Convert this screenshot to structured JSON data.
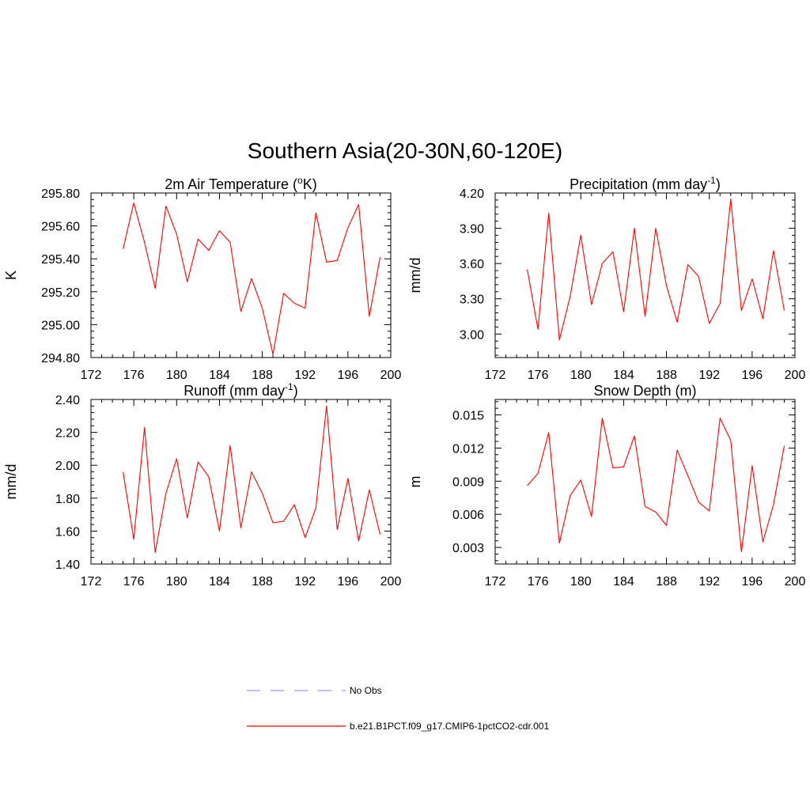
{
  "figure_title": "Southern Asia(20-30N,60-120E)",
  "legend": [
    {
      "label": "No Obs",
      "color": "#9999ee",
      "style": "dashed"
    },
    {
      "label": "b.e21.B1PCT.f09_g17.CMIP6-1pctCO2-cdr.001",
      "color": "#ff0000",
      "style": "solid"
    }
  ],
  "chart_data": [
    {
      "type": "line",
      "title_main": "2m Air Temperature (",
      "title_sup": "o",
      "title_after": "K)",
      "ylabel": "K",
      "xlim": [
        172,
        200
      ],
      "xticks": [
        "172",
        "176",
        "180",
        "184",
        "188",
        "192",
        "196",
        "200"
      ],
      "ylim": [
        294.8,
        295.8
      ],
      "yticks": [
        "294.80",
        "295.00",
        "295.20",
        "295.40",
        "295.60",
        "295.80"
      ],
      "series": [
        {
          "color": "#ff0000",
          "x": [
            175,
            176,
            177,
            178,
            179,
            180,
            181,
            182,
            183,
            184,
            185,
            186,
            187,
            188,
            189,
            190,
            191,
            192,
            193,
            194,
            195,
            196,
            197,
            198,
            199
          ],
          "y": [
            295.46,
            295.74,
            295.5,
            295.22,
            295.72,
            295.55,
            295.26,
            295.52,
            295.45,
            295.57,
            295.5,
            295.08,
            295.28,
            295.1,
            294.82,
            295.19,
            295.13,
            295.1,
            295.68,
            295.38,
            295.39,
            295.59,
            295.73,
            295.05,
            295.41
          ]
        }
      ]
    },
    {
      "type": "line",
      "title_main": "Precipitation (mm day",
      "title_sup": "-1",
      "title_after": ")",
      "ylabel": "mm/d",
      "xlim": [
        172,
        200
      ],
      "xticks": [
        "172",
        "176",
        "180",
        "184",
        "188",
        "192",
        "196",
        "200"
      ],
      "ylim": [
        2.8,
        4.2
      ],
      "yticks": [
        "3.00",
        "3.30",
        "3.60",
        "3.90",
        "4.20"
      ],
      "series": [
        {
          "color": "#ff0000",
          "x": [
            175,
            176,
            177,
            178,
            179,
            180,
            181,
            182,
            183,
            184,
            185,
            186,
            187,
            188,
            189,
            190,
            191,
            192,
            193,
            194,
            195,
            196,
            197,
            198,
            199
          ],
          "y": [
            3.55,
            3.04,
            4.03,
            2.95,
            3.32,
            3.84,
            3.25,
            3.6,
            3.7,
            3.19,
            3.9,
            3.15,
            3.9,
            3.41,
            3.1,
            3.59,
            3.49,
            3.09,
            3.26,
            4.15,
            3.2,
            3.47,
            3.13,
            3.71,
            3.2
          ]
        }
      ]
    },
    {
      "type": "line",
      "title_main": "Runoff (mm day",
      "title_sup": "-1",
      "title_after": ")",
      "ylabel": "mm/d",
      "xlim": [
        172,
        200
      ],
      "xticks": [
        "172",
        "176",
        "180",
        "184",
        "188",
        "192",
        "196",
        "200"
      ],
      "ylim": [
        1.4,
        2.4
      ],
      "yticks": [
        "1.40",
        "1.60",
        "1.80",
        "2.00",
        "2.20",
        "2.40"
      ],
      "series": [
        {
          "color": "#ff0000",
          "x": [
            175,
            176,
            177,
            178,
            179,
            180,
            181,
            182,
            183,
            184,
            185,
            186,
            187,
            188,
            189,
            190,
            191,
            192,
            193,
            194,
            195,
            196,
            197,
            198,
            199
          ],
          "y": [
            1.96,
            1.55,
            2.23,
            1.47,
            1.83,
            2.04,
            1.68,
            2.02,
            1.93,
            1.6,
            2.12,
            1.62,
            1.96,
            1.83,
            1.65,
            1.66,
            1.76,
            1.56,
            1.74,
            2.36,
            1.61,
            1.92,
            1.54,
            1.85,
            1.58
          ]
        }
      ]
    },
    {
      "type": "line",
      "title_main": "Snow Depth (m)",
      "title_sup": "",
      "title_after": "",
      "ylabel": "m",
      "xlim": [
        172,
        200
      ],
      "xticks": [
        "172",
        "176",
        "180",
        "184",
        "188",
        "192",
        "196",
        "200"
      ],
      "ylim": [
        0.0015,
        0.0164
      ],
      "yticks": [
        "0.003",
        "0.006",
        "0.009",
        "0.012",
        "0.015"
      ],
      "series": [
        {
          "color": "#ff0000",
          "x": [
            175,
            176,
            177,
            178,
            179,
            180,
            181,
            182,
            183,
            184,
            185,
            186,
            187,
            188,
            189,
            190,
            191,
            192,
            193,
            194,
            195,
            196,
            197,
            198,
            199
          ],
          "y": [
            0.0086,
            0.0097,
            0.0134,
            0.0034,
            0.0077,
            0.0091,
            0.0058,
            0.0147,
            0.0102,
            0.0103,
            0.0131,
            0.0067,
            0.0062,
            0.005,
            0.0118,
            0.0095,
            0.0071,
            0.0063,
            0.0147,
            0.0127,
            0.0026,
            0.0104,
            0.0035,
            0.0069,
            0.0122
          ]
        }
      ]
    }
  ]
}
